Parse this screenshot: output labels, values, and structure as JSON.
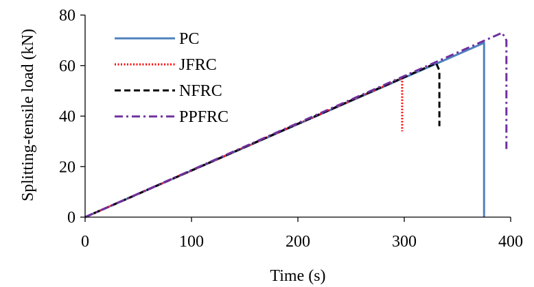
{
  "chart_data": {
    "type": "line",
    "title": "",
    "xlabel": "Time (s)",
    "ylabel": "Splitting-tensile  load (kN)",
    "xlim": [
      0,
      400
    ],
    "ylim": [
      0,
      80
    ],
    "xticks": [
      "0",
      "100",
      "200",
      "300",
      "400"
    ],
    "yticks": [
      "0",
      "20",
      "40",
      "60",
      "80"
    ],
    "grid": false,
    "legend_position": "top-left",
    "series": [
      {
        "name": "PC",
        "color": "#4f81bd",
        "style": "solid",
        "points": [
          [
            0,
            0
          ],
          [
            375,
            69
          ],
          [
            375,
            0
          ]
        ]
      },
      {
        "name": "JFRC",
        "color": "#ff0000",
        "style": "dotted",
        "points": [
          [
            0,
            0
          ],
          [
            298,
            55
          ],
          [
            298,
            34
          ]
        ]
      },
      {
        "name": "NFRC",
        "color": "#000000",
        "style": "dashed",
        "points": [
          [
            0,
            0
          ],
          [
            330,
            61
          ],
          [
            333,
            58
          ],
          [
            333,
            36
          ]
        ]
      },
      {
        "name": "PPFRC",
        "color": "#7030a0",
        "style": "dashdot",
        "points": [
          [
            0,
            0
          ],
          [
            392,
            73
          ],
          [
            396,
            70
          ],
          [
            396,
            27
          ]
        ]
      }
    ]
  }
}
